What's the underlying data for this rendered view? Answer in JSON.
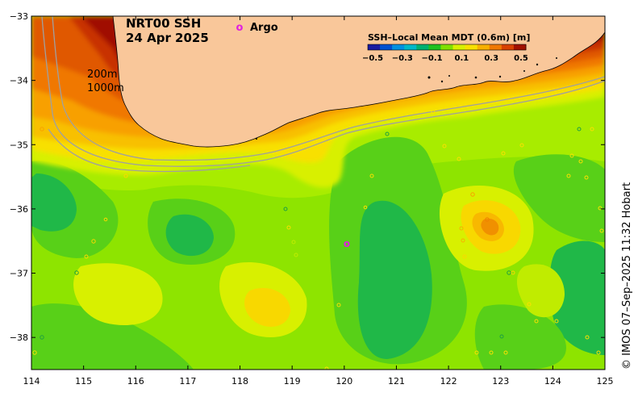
{
  "title": {
    "product": "NRT00 SSH",
    "date": "24 Apr 2025"
  },
  "isobaths": {
    "label_200": "200m",
    "label_1000": "1000m"
  },
  "argo": {
    "symbol": "o",
    "label": "Argo",
    "color": "#e020e0",
    "float_position": {
      "lon": 120.05,
      "lat": -36.55
    }
  },
  "colorbar": {
    "title": "SSH–Local Mean MDT (0.6m) [m]",
    "ticks": [
      "−0.5",
      "−0.3",
      "−0.1",
      "0.1",
      "0.3",
      "0.5"
    ],
    "colors": [
      "#1a1aa0",
      "#0050d0",
      "#0090e0",
      "#00b8c8",
      "#00b070",
      "#20c020",
      "#80e000",
      "#d8f000",
      "#f8e000",
      "#f8b000",
      "#f07800",
      "#d84000",
      "#a01000"
    ]
  },
  "axes": {
    "lon_ticks": [
      "114",
      "115",
      "116",
      "117",
      "118",
      "119",
      "120",
      "121",
      "122",
      "123",
      "124",
      "125"
    ],
    "lat_ticks": [
      "−33",
      "−34",
      "−35",
      "−36",
      "−37",
      "−38"
    ],
    "lon_range": [
      114,
      125
    ],
    "lat_range": [
      -38.5,
      -33
    ]
  },
  "credit": "© IMOS 07–Sep–2025 11:32 Hobart",
  "colors": {
    "land": "#f9c79a",
    "ocean_base": "#9fe800"
  }
}
